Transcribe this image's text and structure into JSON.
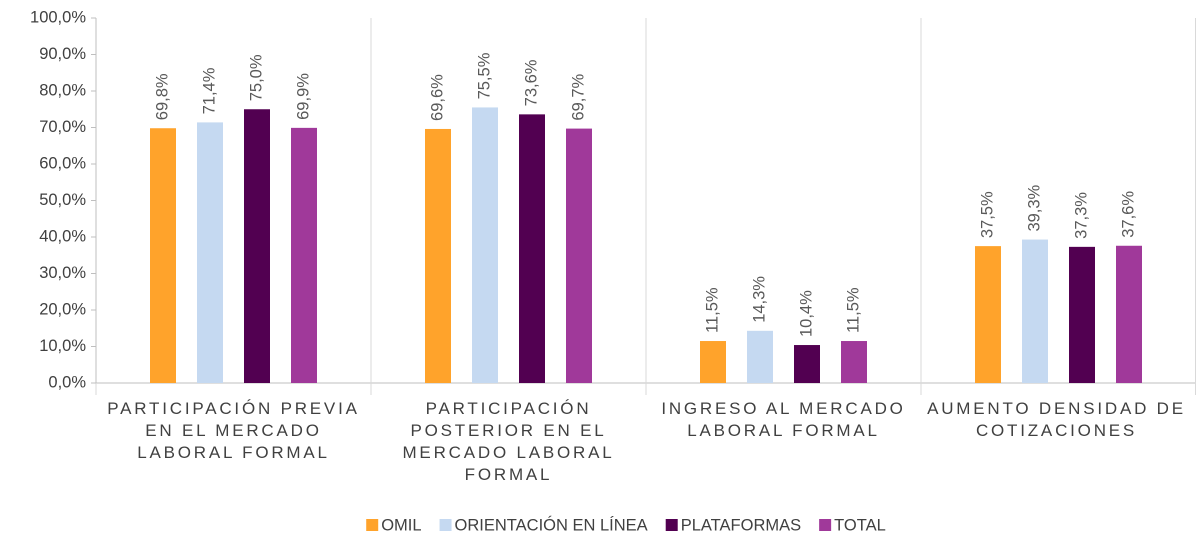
{
  "chart_data": {
    "type": "bar",
    "categories": [
      "PARTICIPACIÓN PREVIA EN EL MERCADO LABORAL FORMAL",
      "PARTICIPACIÓN POSTERIOR EN EL MERCADO LABORAL FORMAL",
      "INGRESO AL MERCADO LABORAL FORMAL",
      "AUMENTO DENSIDAD DE COTIZACIONES"
    ],
    "series": [
      {
        "name": "OMIL",
        "color": "#ffa32b",
        "values": [
          69.8,
          69.6,
          11.5,
          37.5
        ],
        "value_labels": [
          "69,8%",
          "69,6%",
          "11,5%",
          "37,5%"
        ]
      },
      {
        "name": "ORIENTACIÓN EN LÍNEA",
        "color": "#c5d9f1",
        "values": [
          71.4,
          75.5,
          14.3,
          39.3
        ],
        "value_labels": [
          "71,4%",
          "75,5%",
          "14,3%",
          "39,3%"
        ]
      },
      {
        "name": "PLATAFORMAS",
        "color": "#520051",
        "values": [
          75.0,
          73.6,
          10.4,
          37.3
        ],
        "value_labels": [
          "75,0%",
          "73,6%",
          "10,4%",
          "37,3%"
        ]
      },
      {
        "name": "TOTAL",
        "color": "#a0399a",
        "values": [
          69.9,
          69.7,
          11.5,
          37.6
        ],
        "value_labels": [
          "69,9%",
          "69,7%",
          "11,5%",
          "37,6%"
        ]
      }
    ],
    "ylim": [
      0,
      100
    ],
    "yticks": [
      {
        "value": 0,
        "label": "0,0%"
      },
      {
        "value": 10,
        "label": "10,0%"
      },
      {
        "value": 20,
        "label": "20,0%"
      },
      {
        "value": 30,
        "label": "30,0%"
      },
      {
        "value": 40,
        "label": "40,0%"
      },
      {
        "value": 50,
        "label": "50,0%"
      },
      {
        "value": 60,
        "label": "60,0%"
      },
      {
        "value": 70,
        "label": "70,0%"
      },
      {
        "value": 80,
        "label": "80,0%"
      },
      {
        "value": 90,
        "label": "90,0%"
      },
      {
        "value": 100,
        "label": "100,0%"
      }
    ],
    "grid": false,
    "legend": "bottom"
  }
}
